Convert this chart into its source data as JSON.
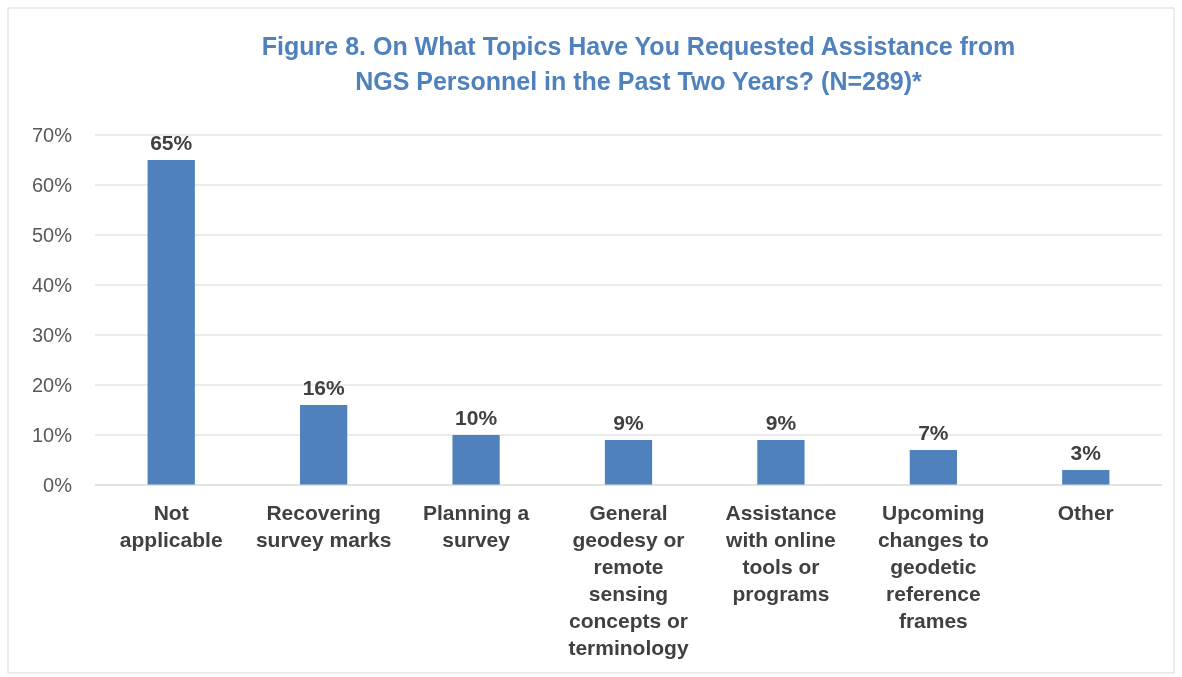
{
  "chart_data": {
    "type": "bar",
    "title": "Figure 8. On What Topics Have You Requested Assistance from NGS Personnel in the Past Two Years? (N=289)*",
    "categories": [
      "Not applicable",
      "Recovering survey marks",
      "Planning a survey",
      "General geodesy or remote sensing concepts or terminology",
      "Assistance with online tools or programs",
      "Upcoming changes to geodetic reference frames",
      "Other"
    ],
    "values": [
      65,
      16,
      10,
      9,
      9,
      7,
      3
    ],
    "color": "#4f81bd",
    "ylim": [
      0,
      70
    ],
    "yticks": [
      {
        "value": 0,
        "label": "0%"
      },
      {
        "value": 10,
        "label": "10%"
      },
      {
        "value": 20,
        "label": "20%"
      },
      {
        "value": 30,
        "label": "30%"
      },
      {
        "value": 40,
        "label": "40%"
      },
      {
        "value": 50,
        "label": "50%"
      },
      {
        "value": 60,
        "label": "60%"
      },
      {
        "value": 70,
        "label": "70%"
      }
    ],
    "value_labels": [
      "65%",
      "16%",
      "10%",
      "9%",
      "9%",
      "7%",
      "3%"
    ],
    "grid": "y"
  }
}
